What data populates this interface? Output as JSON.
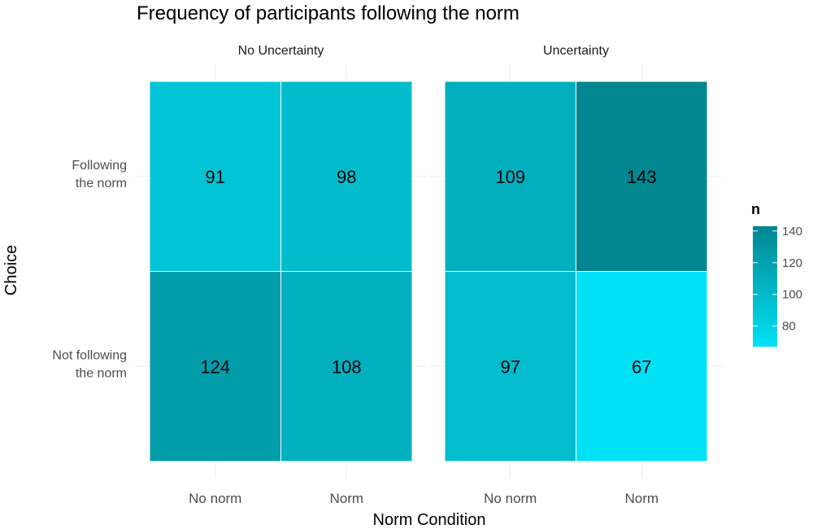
{
  "chart_data": {
    "type": "heatmap",
    "title": "Frequency of participants following the norm",
    "xlabel": "Norm Condition",
    "ylabel": "Choice",
    "x_categories": [
      "No norm",
      "Norm"
    ],
    "y_categories": [
      "Following\nthe norm",
      "Not following\nthe norm"
    ],
    "facets": [
      {
        "name": "No Uncertainty",
        "values": [
          [
            91,
            98
          ],
          [
            124,
            108
          ]
        ]
      },
      {
        "name": "Uncertainty",
        "values": [
          [
            109,
            143
          ],
          [
            97,
            67
          ]
        ]
      }
    ],
    "legend": {
      "title": "n",
      "ticks": [
        80,
        100,
        120,
        140
      ],
      "range": [
        67,
        143
      ],
      "low_color": "#00e1f6",
      "high_color": "#028690",
      "placement": "right"
    },
    "grid": true
  }
}
